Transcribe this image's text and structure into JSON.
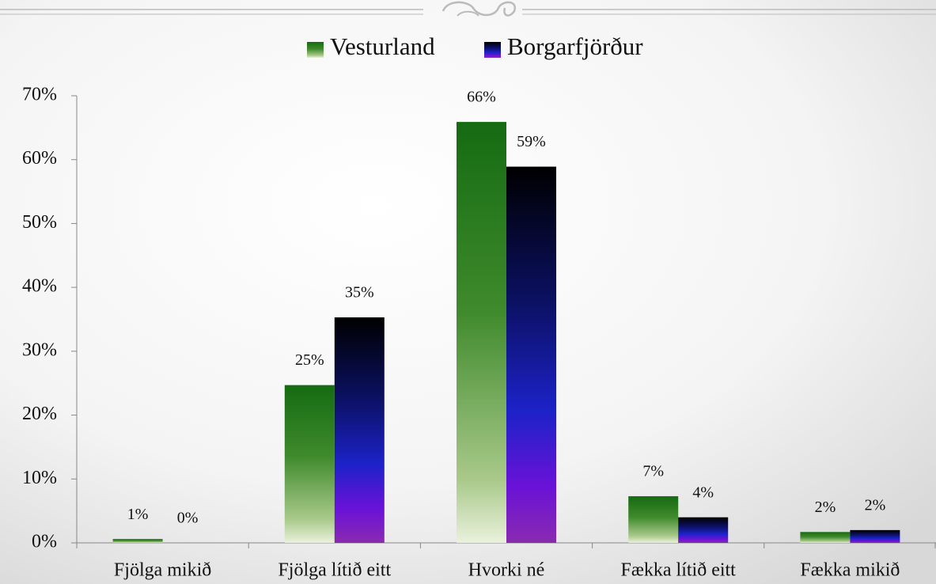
{
  "chart_data": {
    "type": "bar",
    "categories": [
      "Fjölga mikið",
      "Fjölga lítið eitt",
      "Hvorki né",
      "Fækka lítið eitt",
      "Fækka mikið"
    ],
    "series": [
      {
        "name": "Vesturland",
        "color": "#3f8a2c",
        "values": [
          0.6,
          24.7,
          65.9,
          7.3,
          1.7
        ],
        "value_labels": [
          "1%",
          "25%",
          "66%",
          "7%",
          "2%"
        ]
      },
      {
        "name": "Borgarfjörður",
        "color": "#1c22c8",
        "values": [
          0,
          35.3,
          58.9,
          4.0,
          2.0
        ],
        "value_labels": [
          "0%",
          "35%",
          "59%",
          "4%",
          "2%"
        ]
      }
    ],
    "ylim": [
      0,
      70
    ],
    "yticks": [
      {
        "value": 0,
        "label": "0%"
      },
      {
        "value": 10,
        "label": "10%"
      },
      {
        "value": 20,
        "label": "20%"
      },
      {
        "value": 30,
        "label": "30%"
      },
      {
        "value": 40,
        "label": "40%"
      },
      {
        "value": 50,
        "label": "50%"
      },
      {
        "value": 60,
        "label": "60%"
      },
      {
        "value": 70,
        "label": "70%"
      }
    ],
    "legend": "top"
  }
}
